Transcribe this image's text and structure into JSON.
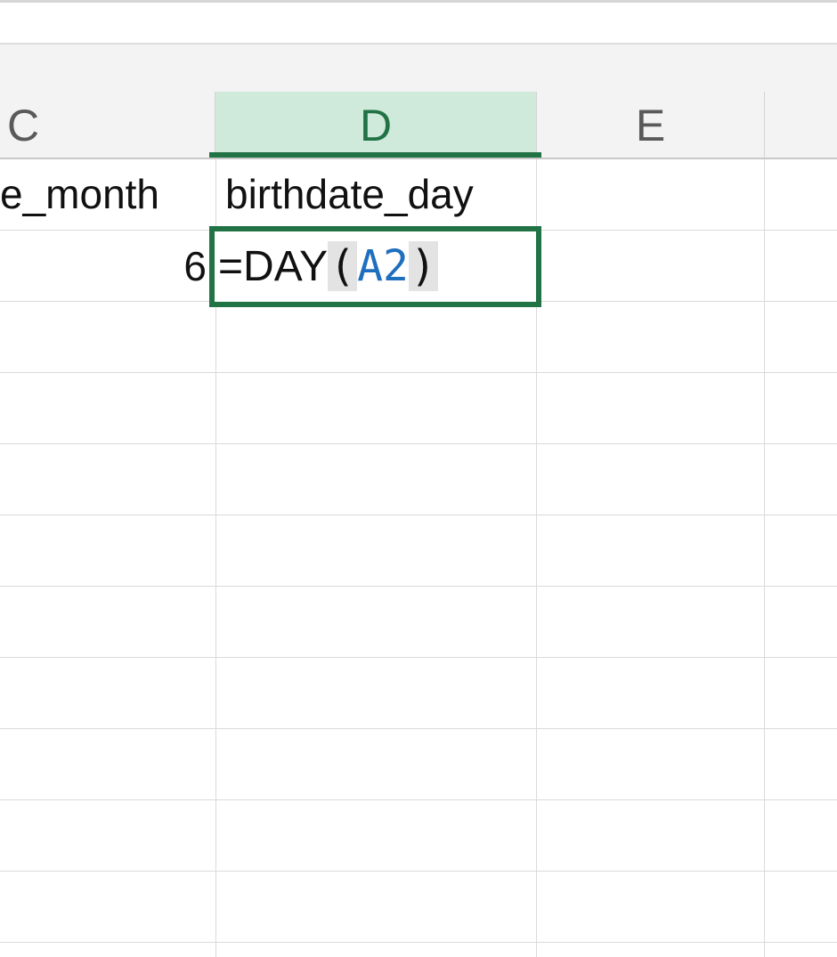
{
  "columns": {
    "c": "C",
    "d": "D",
    "e": "E"
  },
  "cells": {
    "c1": "e_month",
    "d1": "birthdate_day",
    "c2": "6"
  },
  "active_cell": {
    "editing_formula": {
      "equals": "=",
      "function": "DAY",
      "open_paren": "(",
      "reference": "A2",
      "close_paren": ")"
    }
  },
  "colors": {
    "accent": "#217346",
    "selected_header_bg": "#cfe9da",
    "reference_blue": "#1f6fbf"
  }
}
